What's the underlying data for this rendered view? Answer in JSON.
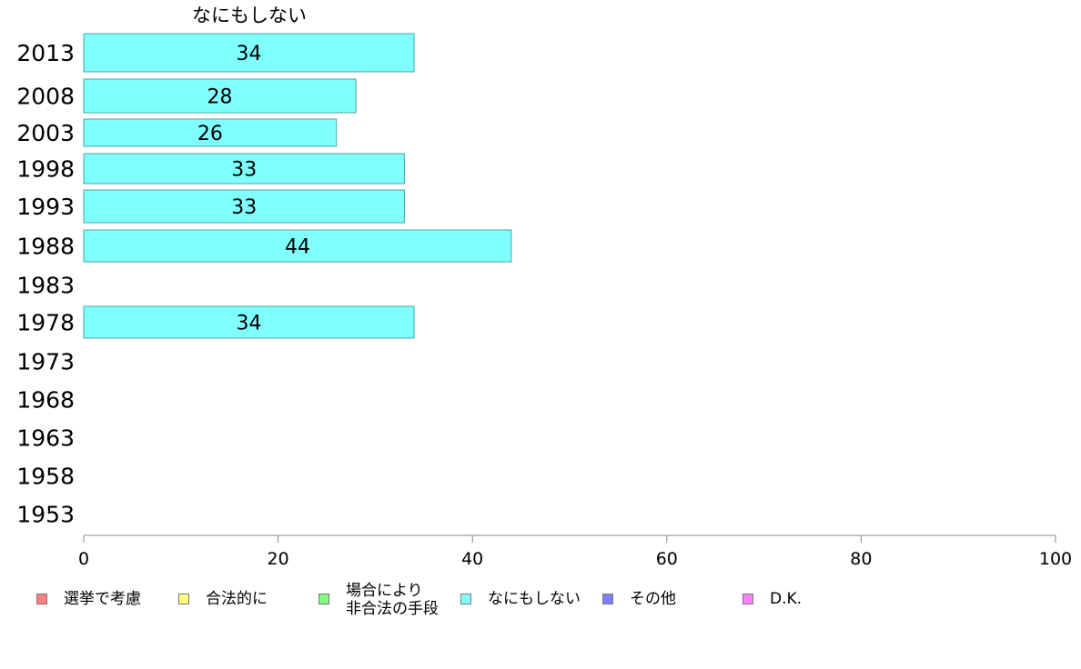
{
  "chart_data": {
    "type": "bar",
    "orientation": "horizontal",
    "title": "なにもしない",
    "categories": [
      "2013",
      "2008",
      "2003",
      "1998",
      "1993",
      "1988",
      "1983",
      "1978",
      "1973",
      "1968",
      "1963",
      "1958",
      "1953"
    ],
    "values": [
      34,
      28,
      26,
      33,
      33,
      44,
      null,
      34,
      null,
      null,
      null,
      null,
      null
    ],
    "xlim": [
      0,
      100
    ],
    "xticks": [
      "0",
      "20",
      "40",
      "60",
      "80",
      "100"
    ],
    "bar_color": "#80ffff",
    "bar_border": "#4aa6a6",
    "legend_position": "bottom",
    "legend": [
      {
        "label": "選挙で考慮",
        "color": "#ff8080"
      },
      {
        "label": "合法的に",
        "color": "#ffff80"
      },
      {
        "label": "場合により\n非合法の手段",
        "color": "#80ff80"
      },
      {
        "label": "なにもしない",
        "color": "#80ffff"
      },
      {
        "label": "その他",
        "color": "#8080ff"
      },
      {
        "label": "D.K.",
        "color": "#ff80ff"
      }
    ]
  }
}
